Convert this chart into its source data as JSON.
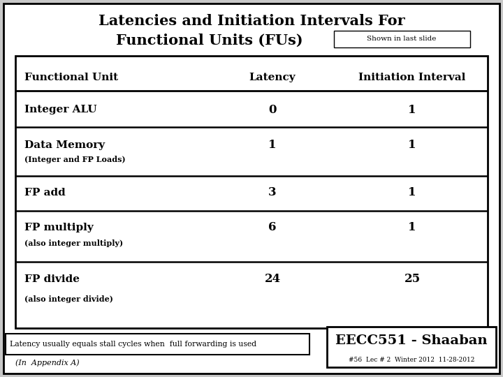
{
  "title_line1": "Latencies and Initiation Intervals For",
  "title_line2": "Functional Units (FUs)",
  "shown_label": "Shown in last slide",
  "outer_bg": "#c8c8c8",
  "col_headers": [
    "Functional Unit",
    "Latency",
    "Initiation Interval"
  ],
  "rows": [
    {
      "name": "Integer ALU",
      "sub": "",
      "latency": "0",
      "interval": "1"
    },
    {
      "name": "Data Memory",
      "sub": "(Integer and FP Loads)",
      "latency": "1",
      "interval": "1"
    },
    {
      "name": "FP add",
      "sub": "",
      "latency": "3",
      "interval": "1"
    },
    {
      "name": "FP multiply",
      "sub": "(also integer multiply)",
      "latency": "6",
      "interval": "1"
    },
    {
      "name": "FP divide",
      "sub": "(also integer divide)",
      "latency": "24",
      "interval": "25"
    }
  ],
  "footer_left": "Latency usually equals stall cycles when  full forwarding is used",
  "footer_bottom_left": "(In  Appendix A)",
  "footer_right_top": "EECC551 - Shaaban",
  "footer_right_bottom": "#56  Lec # 2  Winter 2012  11-28-2012"
}
